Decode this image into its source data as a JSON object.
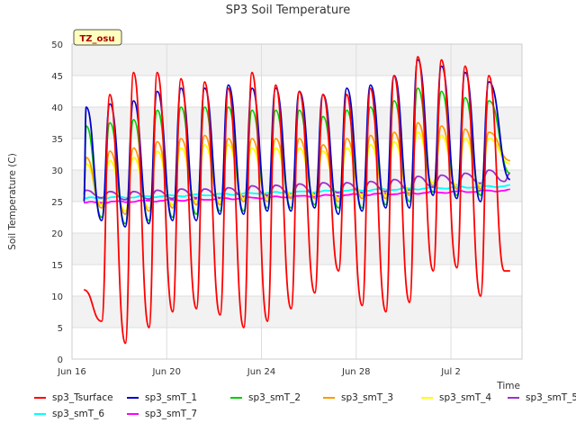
{
  "chart_data": {
    "type": "line",
    "title": "SP3 Soil Temperature",
    "xlabel": "Time",
    "ylabel": "Soil Temperature (C)",
    "ylim": [
      0,
      50
    ],
    "xlim": [
      0,
      19
    ],
    "yticks": [
      0,
      5,
      10,
      15,
      20,
      25,
      30,
      35,
      40,
      45,
      50
    ],
    "xticks": [
      {
        "pos": 0,
        "label": "Jun 16"
      },
      {
        "pos": 4,
        "label": "Jun 20"
      },
      {
        "pos": 8,
        "label": "Jun 24"
      },
      {
        "pos": 12,
        "label": "Jun 28"
      },
      {
        "pos": 16,
        "label": "Jul 2"
      }
    ],
    "grid": true,
    "background_bands": "alternating light gray",
    "station_tag": "TZ_osu",
    "legend_position": "bottom",
    "x_unit_note": "days since Jun 16",
    "series": [
      {
        "name": "sp3_Tsurface",
        "color": "#ff0000",
        "max": [
          null,
          42,
          45.5,
          45.5,
          44.5,
          44,
          43,
          45.5,
          43.5,
          42.5,
          42,
          42,
          43,
          45,
          48,
          47.5,
          46.5,
          45
        ],
        "min": [
          6,
          2.5,
          5,
          7.5,
          8,
          7,
          5,
          6,
          8,
          10.5,
          14,
          8.5,
          7.5,
          9,
          14,
          14.5,
          10,
          14
        ],
        "start": 11,
        "end": 14
      },
      {
        "name": "sp3_smT_1",
        "color": "#0000cc",
        "max": [
          40,
          40.5,
          41,
          42.5,
          43,
          43,
          43.5,
          43,
          43,
          42.5,
          42,
          43,
          43.5,
          45,
          47.5,
          46.5,
          45.5,
          44
        ],
        "min": [
          22,
          21,
          21.5,
          22,
          22,
          23,
          23,
          23.5,
          23.5,
          24,
          23,
          23.5,
          24,
          24,
          26,
          25.5,
          25
        ],
        "start": 25,
        "end": 28.5
      },
      {
        "name": "sp3_smT_2",
        "color": "#00cc00",
        "max": [
          37,
          37.5,
          38,
          39.5,
          40,
          40,
          40,
          39.5,
          39.5,
          39.5,
          38.5,
          39.5,
          40,
          41,
          43,
          42.5,
          41.5,
          41
        ],
        "min": [
          22.5,
          21.5,
          22,
          22.5,
          23,
          23.5,
          23.5,
          24,
          24,
          24.5,
          24,
          24,
          24.5,
          25,
          26.5,
          26,
          26
        ],
        "start": 26,
        "end": 29.5
      },
      {
        "name": "sp3_smT_3",
        "color": "#ff9900",
        "max": [
          32,
          33,
          33.5,
          34.5,
          35,
          35.5,
          35,
          35,
          35,
          35,
          34,
          35,
          35.5,
          36,
          37.5,
          37,
          36.5,
          36
        ],
        "min": [
          24,
          23,
          23.5,
          24,
          24.5,
          24.5,
          25,
          25,
          25.5,
          25.5,
          25,
          25.5,
          25.5,
          26,
          27.5,
          27,
          27
        ],
        "start": 27,
        "end": 31.5
      },
      {
        "name": "sp3_smT_4",
        "color": "#ffff00",
        "max": [
          31,
          31.5,
          32,
          33,
          33.5,
          34,
          34,
          33.5,
          33.5,
          33.5,
          33,
          33.5,
          34,
          34.5,
          36,
          35.5,
          35,
          35
        ],
        "min": [
          24.5,
          23.5,
          24,
          24.5,
          25,
          25,
          25.5,
          25.5,
          26,
          26,
          25.5,
          26,
          26,
          26.5,
          28,
          27.5,
          27.5
        ],
        "start": 27.5,
        "end": 31
      },
      {
        "name": "sp3_smT_5",
        "color": "#9933cc",
        "max": [
          26.8,
          26.6,
          26.6,
          26.8,
          27,
          27,
          27.2,
          27.5,
          27.6,
          27.8,
          28,
          28,
          28.2,
          28.5,
          29,
          29.2,
          29.5,
          30
        ],
        "min": [
          25.6,
          25.3,
          25.4,
          25.5,
          25.6,
          25.6,
          25.8,
          26,
          26.1,
          26.2,
          26.4,
          26.4,
          26.6,
          26.8,
          27.3,
          27.6,
          27.9,
          28.2
        ],
        "start": 26.5,
        "end": 29.5
      },
      {
        "name": "sp3_smT_6",
        "color": "#00ffff",
        "from": 25.5,
        "to": 27.5
      },
      {
        "name": "sp3_smT_7",
        "color": "#ff00ff",
        "from": 24.8,
        "to": 26.8
      }
    ]
  }
}
